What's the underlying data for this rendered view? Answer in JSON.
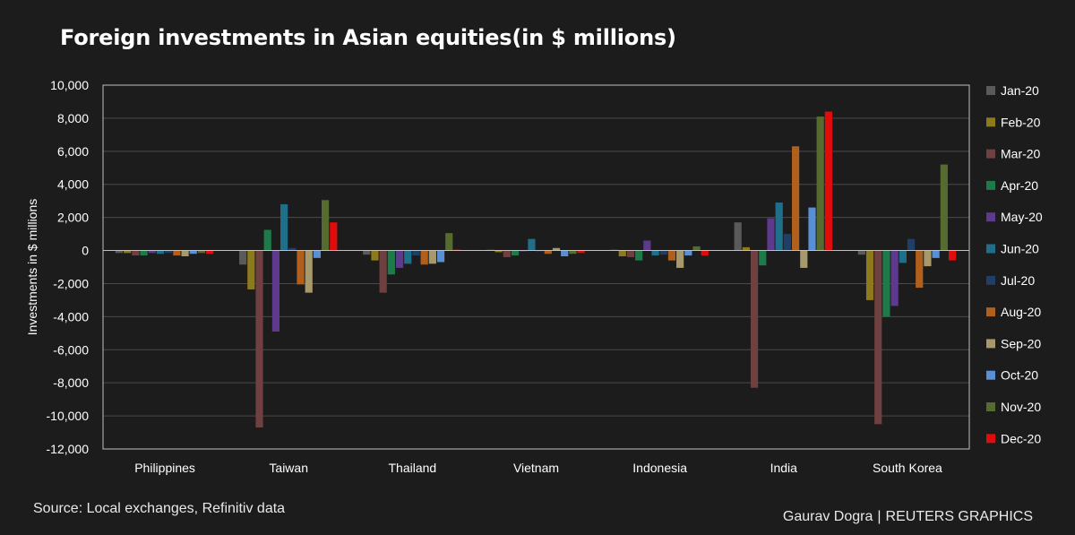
{
  "title": "Foreign investments in Asian equities(in $ millions)",
  "source": "Source: Local exchanges, Refinitiv data",
  "credit": {
    "author": "Gaurav Dogra",
    "separator": "|",
    "org": "REUTERS GRAPHICS"
  },
  "colors": {
    "background": "#1c1c1c",
    "plot_background": "#1c1c1c",
    "axis": "#bfbfbf",
    "grid": "#4a4a4a",
    "text": "#ffffff"
  },
  "chart_data": {
    "type": "bar",
    "title": "Foreign investments in Asian equities(in $ millions)",
    "xlabel": "",
    "ylabel": "Investments in $ millions",
    "ylim": [
      -12000,
      10000
    ],
    "yticks": [
      -12000,
      -10000,
      -8000,
      -6000,
      -4000,
      -2000,
      0,
      2000,
      4000,
      6000,
      8000,
      10000
    ],
    "ytick_labels": [
      "-12,000",
      "-10,000",
      "-8,000",
      "-6,000",
      "-4,000",
      "-2,000",
      "0",
      "2,000",
      "4,000",
      "6,000",
      "8,000",
      "10,000"
    ],
    "grid": true,
    "legend": "right",
    "categories": [
      "Philippines",
      "Taiwan",
      "Thailand",
      "Vietnam",
      "Indonesia",
      "India",
      "South Korea"
    ],
    "series": [
      {
        "name": "Jan-20",
        "color": "#5a5a5a",
        "values": [
          -150,
          -850,
          -250,
          50,
          50,
          1700,
          -250
        ]
      },
      {
        "name": "Feb-20",
        "color": "#8c7a1c",
        "values": [
          -150,
          -2350,
          -600,
          -100,
          -350,
          200,
          -3000
        ]
      },
      {
        "name": "Mar-20",
        "color": "#6e4040",
        "values": [
          -300,
          -10700,
          -2550,
          -400,
          -400,
          -8300,
          -10500
        ]
      },
      {
        "name": "Apr-20",
        "color": "#1e7a48",
        "values": [
          -300,
          1250,
          -1450,
          -300,
          -600,
          -900,
          -4000
        ]
      },
      {
        "name": "May-20",
        "color": "#5e3a8e",
        "values": [
          -150,
          -4900,
          -1050,
          -50,
          600,
          1950,
          -3350
        ]
      },
      {
        "name": "Jun-20",
        "color": "#1f6f8b",
        "values": [
          -200,
          2800,
          -800,
          700,
          -300,
          2900,
          -750
        ]
      },
      {
        "name": "Jul-20",
        "color": "#1f3f66",
        "values": [
          -150,
          150,
          -300,
          -50,
          -250,
          1000,
          700
        ]
      },
      {
        "name": "Aug-20",
        "color": "#b0601c",
        "values": [
          -300,
          -2050,
          -850,
          -200,
          -600,
          6300,
          -2250
        ]
      },
      {
        "name": "Sep-20",
        "color": "#a8996a",
        "values": [
          -350,
          -2550,
          -800,
          150,
          -1050,
          -1050,
          -950
        ]
      },
      {
        "name": "Oct-20",
        "color": "#5a8fd6",
        "values": [
          -200,
          -450,
          -700,
          -350,
          -300,
          2600,
          -450
        ]
      },
      {
        "name": "Nov-20",
        "color": "#556b2f",
        "values": [
          -150,
          3050,
          1050,
          -200,
          250,
          8100,
          5200
        ]
      },
      {
        "name": "Dec-20",
        "color": "#e00c0c",
        "values": [
          -200,
          1700,
          50,
          -150,
          -300,
          8400,
          -600
        ]
      }
    ]
  }
}
